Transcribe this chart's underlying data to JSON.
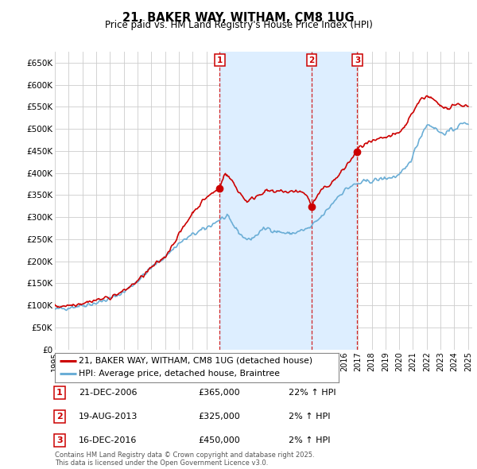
{
  "title": "21, BAKER WAY, WITHAM, CM8 1UG",
  "subtitle": "Price paid vs. HM Land Registry's House Price Index (HPI)",
  "ylim": [
    0,
    675000
  ],
  "yticks": [
    0,
    50000,
    100000,
    150000,
    200000,
    250000,
    300000,
    350000,
    400000,
    450000,
    500000,
    550000,
    600000,
    650000
  ],
  "ytick_labels": [
    "£0",
    "£50K",
    "£100K",
    "£150K",
    "£200K",
    "£250K",
    "£300K",
    "£350K",
    "£400K",
    "£450K",
    "£500K",
    "£550K",
    "£600K",
    "£650K"
  ],
  "hpi_color": "#6baed6",
  "price_color": "#cc0000",
  "vline_color": "#cc0000",
  "shade_color": "#ddeeff",
  "background_color": "#ffffff",
  "grid_color": "#cccccc",
  "sale_markers": [
    {
      "label": "1",
      "year": 2006.97,
      "price": 365000
    },
    {
      "label": "2",
      "year": 2013.63,
      "price": 325000
    },
    {
      "label": "3",
      "year": 2016.96,
      "price": 450000
    }
  ],
  "footer_text": "Contains HM Land Registry data © Crown copyright and database right 2025.\nThis data is licensed under the Open Government Licence v3.0.",
  "legend_entries": [
    {
      "label": "21, BAKER WAY, WITHAM, CM8 1UG (detached house)",
      "color": "#cc0000"
    },
    {
      "label": "HPI: Average price, detached house, Braintree",
      "color": "#6baed6"
    }
  ],
  "table_rows": [
    {
      "num": "1",
      "date": "21-DEC-2006",
      "price": "£365,000",
      "hpi": "22% ↑ HPI"
    },
    {
      "num": "2",
      "date": "19-AUG-2013",
      "price": "£325,000",
      "hpi": "2% ↑ HPI"
    },
    {
      "num": "3",
      "date": "16-DEC-2016",
      "price": "£450,000",
      "hpi": "2% ↑ HPI"
    }
  ],
  "hpi_anchors": {
    "1995": 90000,
    "1996": 95000,
    "1997": 100000,
    "1998": 105000,
    "1999": 115000,
    "2000": 130000,
    "2001": 155000,
    "2002": 185000,
    "2003": 210000,
    "2004": 240000,
    "2005": 260000,
    "2006": 275000,
    "2007": 295000,
    "2007.5": 300000,
    "2008": 280000,
    "2008.5": 260000,
    "2009": 248000,
    "2009.5": 255000,
    "2010": 270000,
    "2010.5": 275000,
    "2011": 268000,
    "2011.5": 265000,
    "2012": 262000,
    "2012.5": 265000,
    "2013": 270000,
    "2013.5": 275000,
    "2014": 290000,
    "2014.5": 305000,
    "2015": 325000,
    "2015.5": 345000,
    "2016": 360000,
    "2016.5": 370000,
    "2017": 375000,
    "2017.5": 380000,
    "2018": 382000,
    "2018.5": 385000,
    "2019": 388000,
    "2019.5": 390000,
    "2020": 395000,
    "2020.5": 410000,
    "2021": 440000,
    "2021.5": 480000,
    "2022": 510000,
    "2022.5": 505000,
    "2023": 490000,
    "2023.5": 492000,
    "2024": 500000,
    "2024.5": 510000,
    "2025": 515000
  },
  "price_anchors": {
    "1995": 97000,
    "1996": 100000,
    "1997": 105000,
    "1998": 112000,
    "1999": 118000,
    "2000": 132000,
    "2001": 155000,
    "2002": 185000,
    "2003": 210000,
    "2004": 260000,
    "2005": 310000,
    "2006": 345000,
    "2006.5": 355000,
    "2006.97": 365000,
    "2007.3": 400000,
    "2007.8": 385000,
    "2008.3": 360000,
    "2008.8": 340000,
    "2009": 335000,
    "2009.5": 345000,
    "2010": 355000,
    "2010.5": 360000,
    "2011": 355000,
    "2011.5": 360000,
    "2012": 355000,
    "2012.5": 360000,
    "2013": 355000,
    "2013.3": 350000,
    "2013.63": 325000,
    "2014": 345000,
    "2014.5": 365000,
    "2015": 375000,
    "2015.5": 390000,
    "2016": 410000,
    "2016.5": 430000,
    "2016.96": 450000,
    "2017": 455000,
    "2017.5": 465000,
    "2018": 470000,
    "2018.5": 475000,
    "2019": 480000,
    "2019.5": 485000,
    "2020": 490000,
    "2020.5": 510000,
    "2021": 540000,
    "2021.5": 565000,
    "2022": 575000,
    "2022.5": 565000,
    "2023": 550000,
    "2023.5": 548000,
    "2024": 555000,
    "2024.5": 555000,
    "2025": 550000
  }
}
